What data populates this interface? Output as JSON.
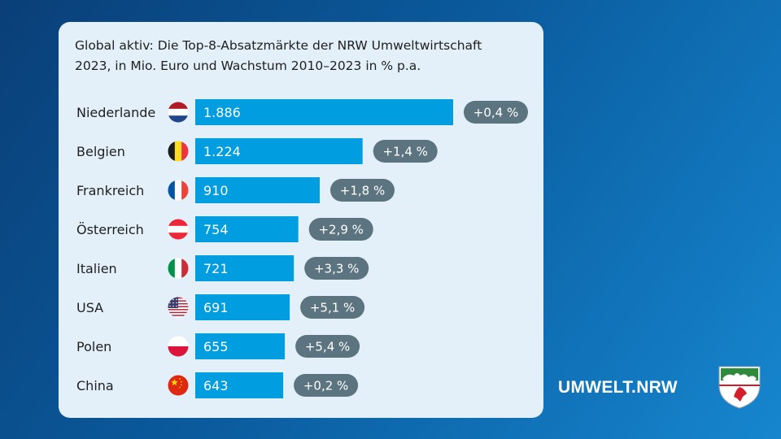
{
  "chart_data": {
    "type": "bar",
    "orientation": "horizontal",
    "title_line1": "Global aktiv: Die Top-8-Absatzmärkte der NRW Umweltwirtschaft",
    "title_line2": "2023, in Mio. Euro und Wachstum 2010–2023 in % p.a.",
    "categories": [
      "Niederlande",
      "Belgien",
      "Frankreich",
      "Österreich",
      "Italien",
      "USA",
      "Polen",
      "China"
    ],
    "values": [
      1886,
      1224,
      910,
      754,
      721,
      691,
      655,
      643
    ],
    "value_labels": [
      "1.886",
      "1.224",
      "910",
      "754",
      "721",
      "691",
      "655",
      "643"
    ],
    "growth_labels": [
      "+0,4 %",
      "+1,4 %",
      "+1,8 %",
      "+2,9 %",
      "+3,3 %",
      "+5,1 %",
      "+5,4 %",
      "+0,2 %"
    ],
    "growth_values": [
      0.4,
      1.4,
      1.8,
      2.9,
      3.3,
      5.1,
      5.4,
      0.2
    ],
    "flags": [
      "netherlands-flag-icon",
      "belgium-flag-icon",
      "france-flag-icon",
      "austria-flag-icon",
      "italy-flag-icon",
      "usa-flag-icon",
      "poland-flag-icon",
      "china-flag-icon"
    ],
    "xlim": [
      0,
      1886
    ]
  },
  "brand": "UMWELT.NRW",
  "colors": {
    "bar": "#009de0",
    "pill": "#5b7480",
    "card": "#e3f0f9"
  }
}
